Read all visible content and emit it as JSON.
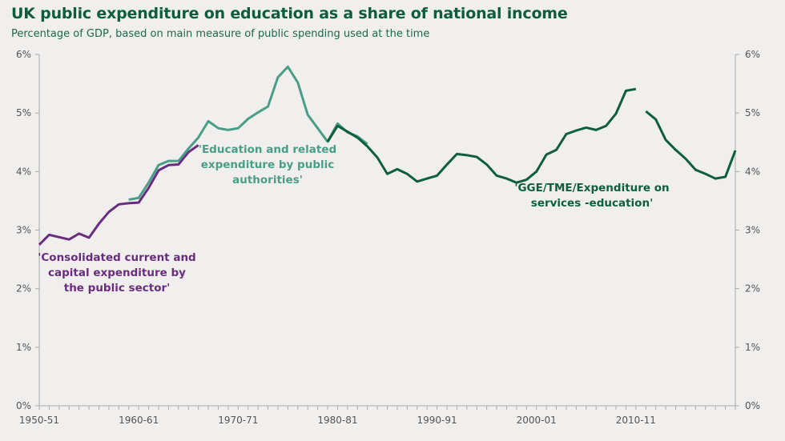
{
  "chart_data": {
    "type": "line",
    "title": "UK public expenditure on education as a share of national income",
    "subtitle": "Percentage of GDP, based on main measure of public spending used at the time",
    "xlabel": "",
    "ylabel": "",
    "ylim": [
      0,
      6
    ],
    "xlim": [
      1950,
      2020
    ],
    "yticks": [
      "0%",
      "1%",
      "2%",
      "3%",
      "4%",
      "5%",
      "6%"
    ],
    "xticks": [
      {
        "year": 1950,
        "label": "1950-51"
      },
      {
        "year": 1960,
        "label": "1960-61"
      },
      {
        "year": 1970,
        "label": "1970-71"
      },
      {
        "year": 1980,
        "label": "1980-81"
      },
      {
        "year": 1990,
        "label": "1990-91"
      },
      {
        "year": 2000,
        "label": "2000-01"
      },
      {
        "year": 2010,
        "label": "2010-11"
      }
    ],
    "grid": false,
    "series": [
      {
        "name": "'Consolidated current and capital expenditure by the public sector'",
        "color": "#6a2c7e",
        "x": [
          1950,
          1951,
          1952,
          1953,
          1954,
          1955,
          1956,
          1957,
          1958,
          1959,
          1960,
          1961,
          1962,
          1963,
          1964,
          1965,
          1966
        ],
        "y": [
          2.75,
          2.92,
          2.88,
          2.84,
          2.94,
          2.87,
          3.11,
          3.31,
          3.44,
          3.46,
          3.47,
          3.72,
          4.02,
          4.11,
          4.12,
          4.33,
          4.45
        ]
      },
      {
        "name": "'Education and related expenditure by public authorities'",
        "color": "#4a9d86",
        "x": [
          1959,
          1960,
          1961,
          1962,
          1963,
          1964,
          1965,
          1966,
          1967,
          1968,
          1969,
          1970,
          1971,
          1972,
          1973,
          1974,
          1975,
          1976,
          1977,
          1978,
          1979,
          1980,
          1981,
          1982,
          1983
        ],
        "y": [
          3.52,
          3.55,
          3.81,
          4.11,
          4.18,
          4.18,
          4.39,
          4.58,
          4.86,
          4.74,
          4.71,
          4.74,
          4.9,
          5.01,
          5.11,
          5.61,
          5.79,
          5.52,
          4.97,
          4.74,
          4.51,
          4.82,
          4.67,
          4.6,
          4.47
        ]
      },
      {
        "name": "'GGE/TME/Expenditure on services -education'",
        "color": "#0e5e3e",
        "x": [
          1979,
          1980,
          1981,
          1982,
          1983,
          1984,
          1985,
          1986,
          1987,
          1988,
          1989,
          1990,
          1991,
          1992,
          1993,
          1994,
          1995,
          1996,
          1997,
          1998,
          1999,
          2000,
          2001,
          2002,
          2003,
          2004,
          2005,
          2006,
          2007,
          2008,
          2009,
          2010,
          2011,
          2012,
          2013,
          2014,
          2015,
          2016,
          2017,
          2018,
          2019,
          2020
        ],
        "y": [
          4.51,
          4.78,
          4.68,
          4.58,
          4.43,
          4.24,
          3.96,
          4.04,
          3.96,
          3.83,
          3.88,
          3.93,
          4.12,
          4.3,
          4.28,
          4.25,
          4.12,
          3.93,
          3.88,
          3.81,
          3.86,
          4.0,
          4.29,
          4.37,
          4.64,
          4.7,
          4.75,
          4.71,
          4.78,
          4.99,
          5.38,
          5.41,
          5.03,
          4.89,
          4.54,
          4.37,
          4.22,
          4.03,
          3.96,
          3.88,
          3.91,
          4.36
        ],
        "break_after": 2010
      }
    ],
    "annotations": [
      {
        "series": 0,
        "lines": [
          "'Consolidated current and",
          "capital expenditure by",
          "the public sector'"
        ]
      },
      {
        "series": 1,
        "lines": [
          "'Education and related",
          "expenditure by public",
          "authorities'"
        ]
      },
      {
        "series": 2,
        "lines": [
          "'GGE/TME/Expenditure on",
          "services -education'"
        ]
      }
    ]
  }
}
